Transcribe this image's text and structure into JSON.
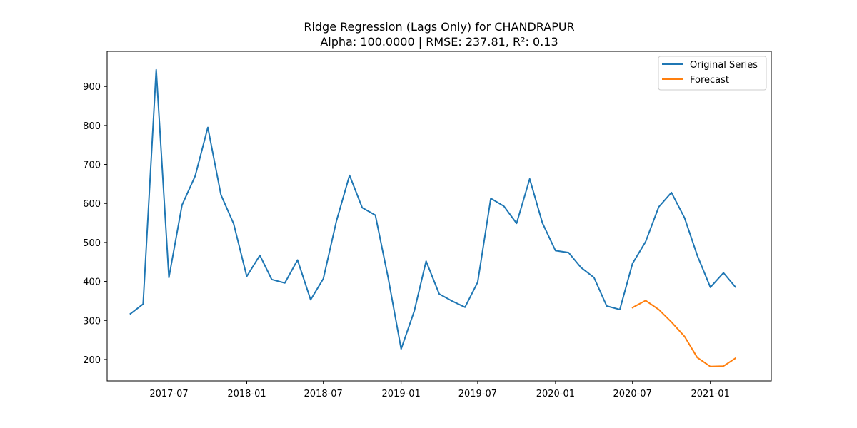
{
  "chart_data": {
    "type": "line",
    "title": "Ridge Regression (Lags Only) for CHANDRAPUR",
    "subtitle": "Alpha: 100.0000 | RMSE: 237.81, R²: 0.13",
    "xlabel": "",
    "ylabel": "",
    "x_ticks": [
      "2017-07",
      "2018-01",
      "2018-07",
      "2019-01",
      "2019-07",
      "2020-01",
      "2020-07",
      "2021-01"
    ],
    "y_ticks": [
      200,
      300,
      400,
      500,
      600,
      700,
      800,
      900
    ],
    "xlim": [
      "2017-02-05",
      "2021-05-25"
    ],
    "ylim": [
      145,
      990
    ],
    "grid": false,
    "legend_position": "top-right",
    "series": [
      {
        "name": "Original Series",
        "color": "#1f77b4",
        "x": [
          "2017-04-01",
          "2017-05-01",
          "2017-06-01",
          "2017-07-01",
          "2017-08-01",
          "2017-09-01",
          "2017-10-01",
          "2017-11-01",
          "2017-12-01",
          "2018-01-01",
          "2018-02-01",
          "2018-03-01",
          "2018-04-01",
          "2018-05-01",
          "2018-06-01",
          "2018-07-01",
          "2018-08-01",
          "2018-09-01",
          "2018-10-01",
          "2018-11-01",
          "2018-12-01",
          "2019-01-01",
          "2019-02-01",
          "2019-03-01",
          "2019-04-01",
          "2019-05-01",
          "2019-06-01",
          "2019-07-01",
          "2019-08-01",
          "2019-09-01",
          "2019-10-01",
          "2019-11-01",
          "2019-12-01",
          "2020-01-01",
          "2020-02-01",
          "2020-03-01",
          "2020-04-01",
          "2020-05-01",
          "2020-06-01",
          "2020-07-01",
          "2020-08-01",
          "2020-09-01",
          "2020-10-01",
          "2020-11-01",
          "2020-12-01",
          "2021-01-01",
          "2021-02-01",
          "2021-03-01"
        ],
        "values": [
          317,
          342,
          943,
          410,
          596,
          670,
          795,
          622,
          548,
          413,
          467,
          405,
          396,
          455,
          353,
          407,
          555,
          672,
          589,
          570,
          411,
          227,
          324,
          452,
          368,
          350,
          334,
          398,
          613,
          593,
          549,
          663,
          550,
          479,
          474,
          436,
          410,
          337,
          328,
          446,
          502,
          591,
          628,
          563,
          467,
          385,
          422,
          386
        ]
      },
      {
        "name": "Forecast",
        "color": "#ff7f0e",
        "x": [
          "2020-07-01",
          "2020-08-01",
          "2020-09-01",
          "2020-10-01",
          "2020-11-01",
          "2020-12-01",
          "2021-01-01",
          "2021-02-01",
          "2021-03-01"
        ],
        "values": [
          333,
          351,
          328,
          296,
          259,
          205,
          182,
          183,
          203
        ]
      }
    ]
  }
}
